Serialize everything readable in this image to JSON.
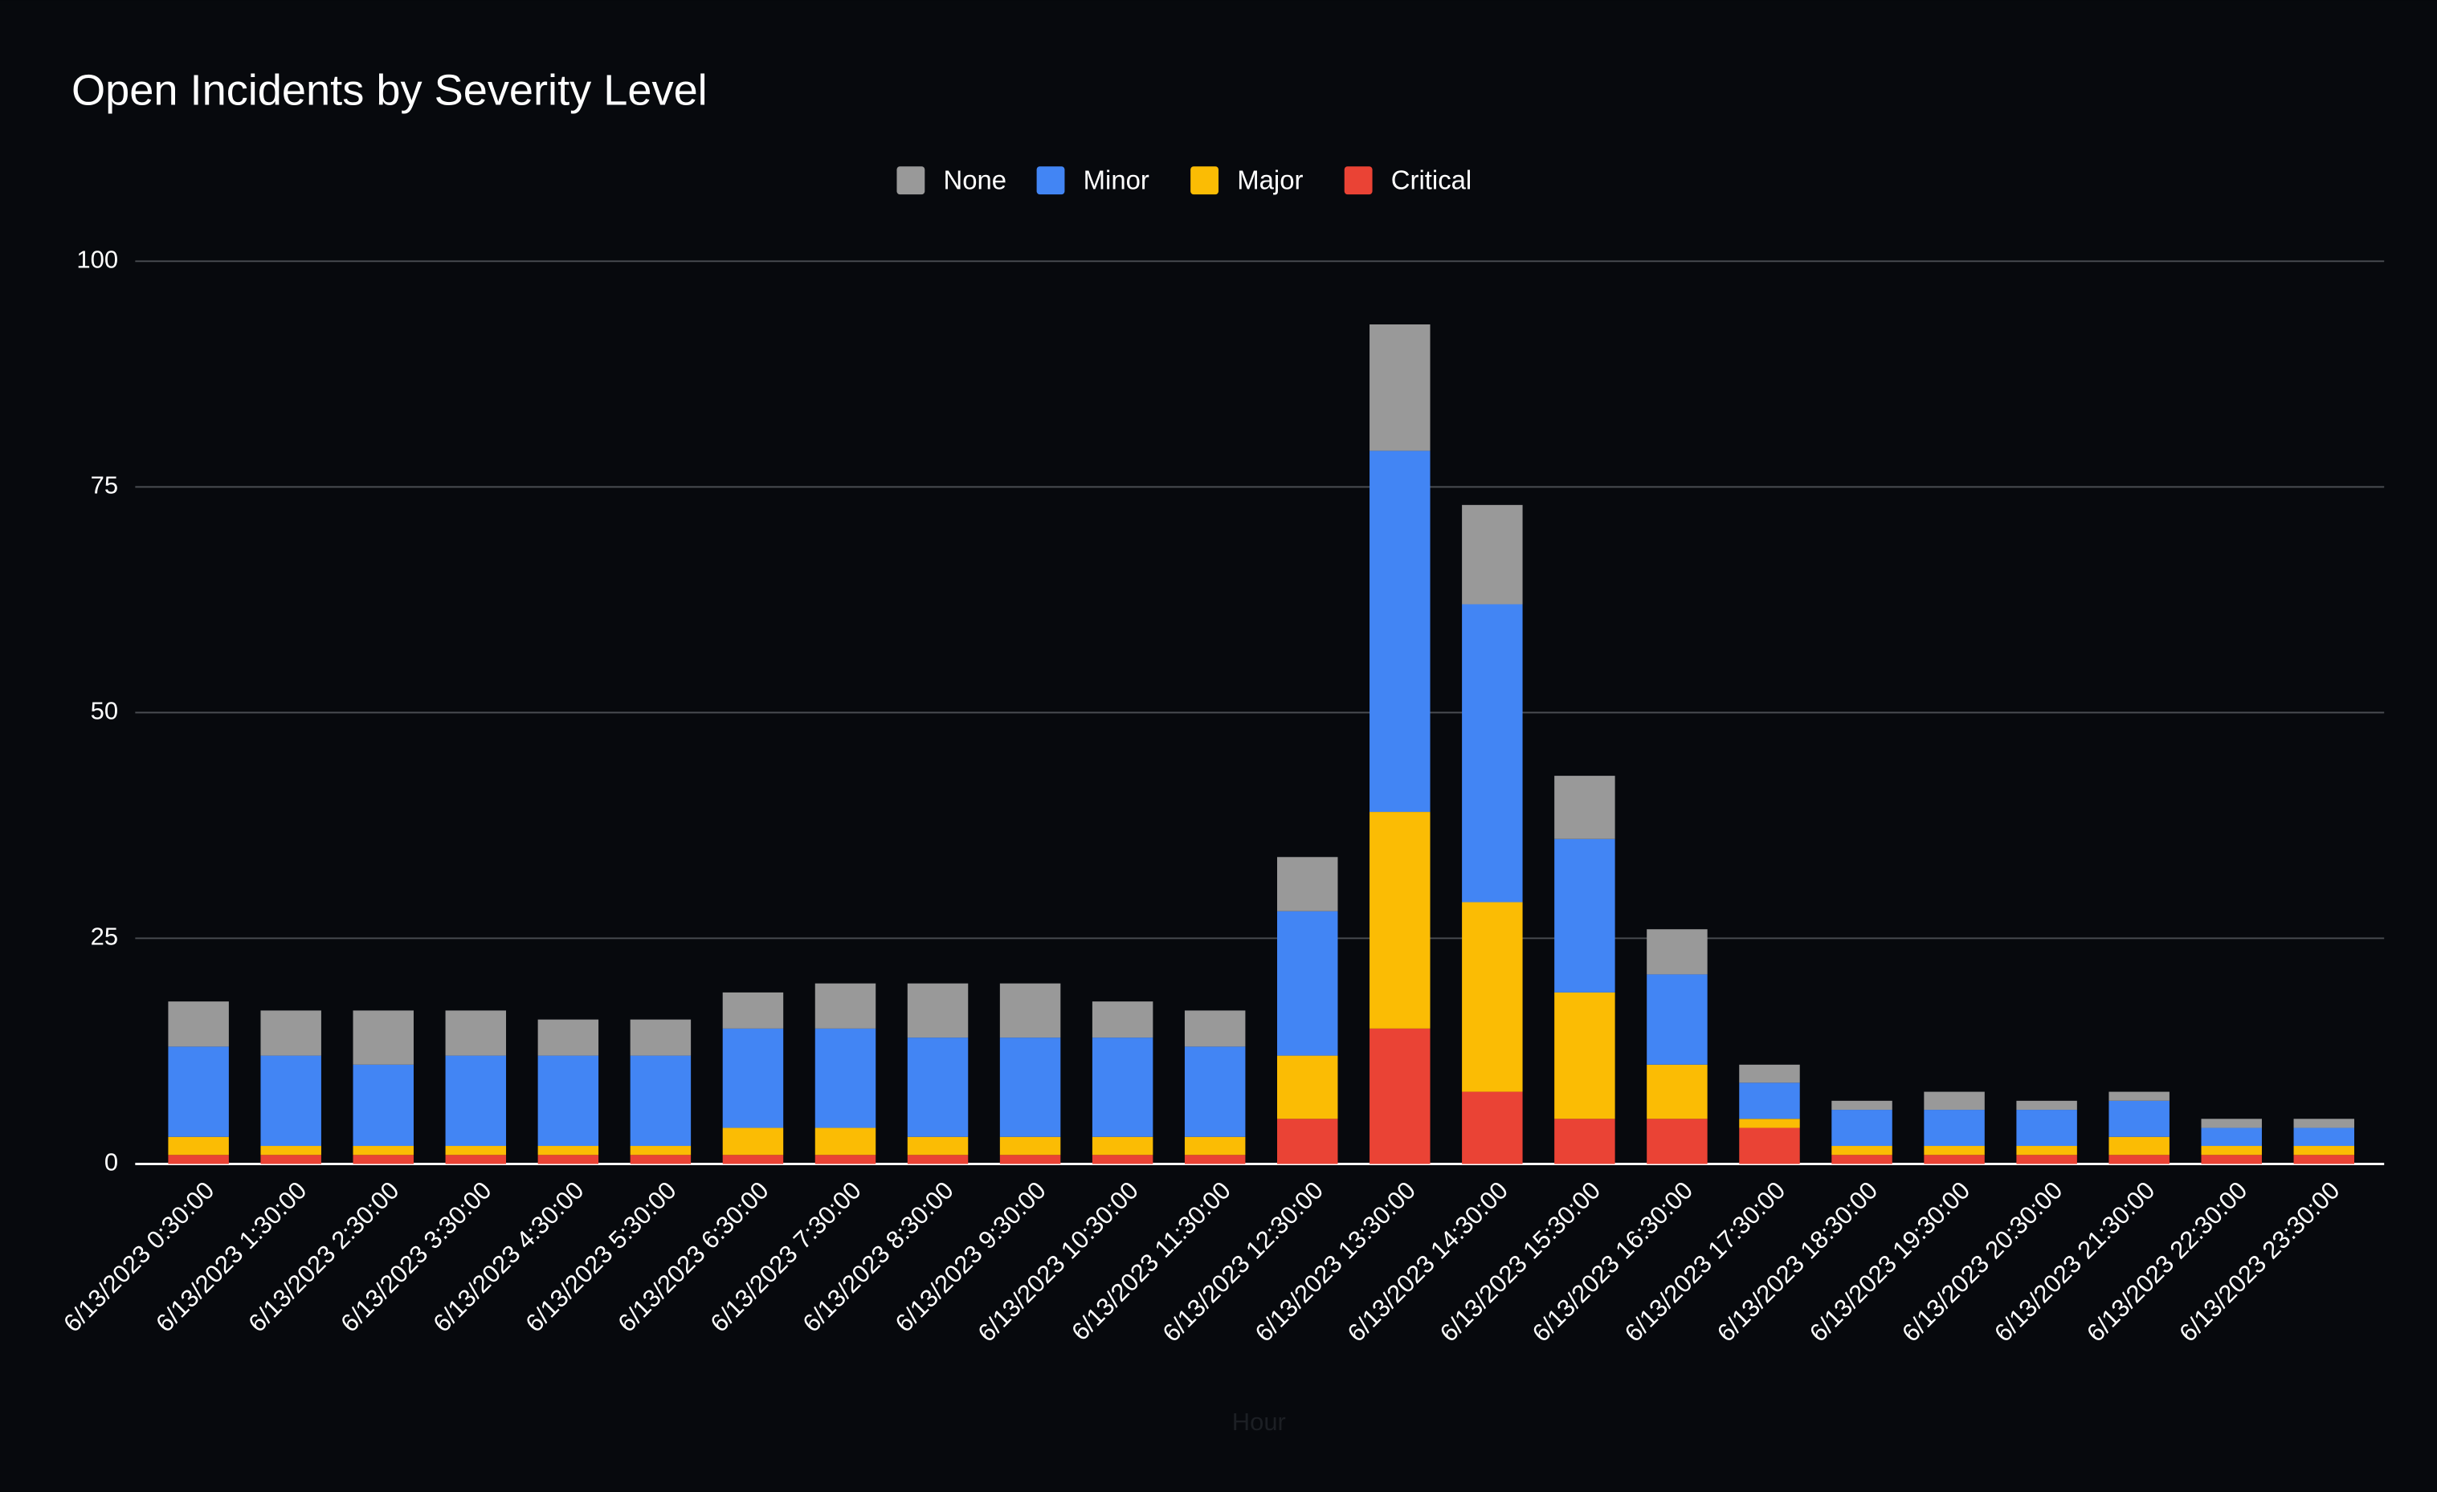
{
  "chart_data": {
    "type": "stacked_bar",
    "title": "Open Incidents by Severity Level",
    "x_label": "Hour",
    "categories": [
      "6/13/2023 0:30:00",
      "6/13/2023 1:30:00",
      "6/13/2023 2:30:00",
      "6/13/2023 3:30:00",
      "6/13/2023 4:30:00",
      "6/13/2023 5:30:00",
      "6/13/2023 6:30:00",
      "6/13/2023 7:30:00",
      "6/13/2023 8:30:00",
      "6/13/2023 9:30:00",
      "6/13/2023 10:30:00",
      "6/13/2023 11:30:00",
      "6/13/2023 12:30:00",
      "6/13/2023 13:30:00",
      "6/13/2023 14:30:00",
      "6/13/2023 15:30:00",
      "6/13/2023 16:30:00",
      "6/13/2023 17:30:00",
      "6/13/2023 18:30:00",
      "6/13/2023 19:30:00",
      "6/13/2023 20:30:00",
      "6/13/2023 21:30:00",
      "6/13/2023 22:30:00",
      "6/13/2023 23:30:00"
    ],
    "series": [
      {
        "name": "None",
        "color": "#999999",
        "values": [
          5,
          5,
          6,
          5,
          4,
          4,
          4,
          5,
          6,
          6,
          4,
          4,
          6,
          14,
          11,
          7,
          5,
          2,
          1,
          2,
          1,
          1,
          1,
          1
        ]
      },
      {
        "name": "Minor",
        "color": "#4285f4",
        "values": [
          10,
          10,
          9,
          10,
          10,
          10,
          11,
          11,
          11,
          11,
          11,
          10,
          16,
          40,
          33,
          17,
          10,
          4,
          4,
          4,
          4,
          4,
          2,
          2
        ]
      },
      {
        "name": "Major",
        "color": "#fbbc04",
        "values": [
          2,
          1,
          1,
          1,
          1,
          1,
          3,
          3,
          2,
          2,
          2,
          2,
          7,
          24,
          21,
          14,
          6,
          1,
          1,
          1,
          1,
          2,
          1,
          1
        ]
      },
      {
        "name": "Critical",
        "color": "#ea4335",
        "values": [
          1,
          1,
          1,
          1,
          1,
          1,
          1,
          1,
          1,
          1,
          1,
          1,
          5,
          15,
          8,
          5,
          5,
          4,
          1,
          1,
          1,
          1,
          1,
          1
        ]
      }
    ],
    "ylim": [
      0,
      100
    ],
    "yticks": [
      0,
      25,
      50,
      75,
      100
    ],
    "grid": true,
    "legend": "top"
  }
}
